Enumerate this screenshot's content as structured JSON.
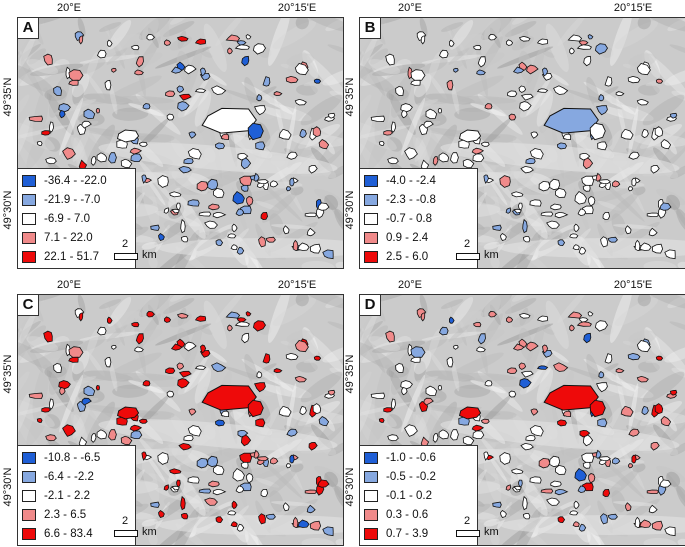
{
  "colors": {
    "strong_neg": "#1f5fd6",
    "neg": "#86a8e0",
    "neutral": "#ffffff",
    "pos": "#f08a8a",
    "strong_pos": "#ee0a0a"
  },
  "axis": {
    "lon_left": "20°E",
    "lon_right": "20°15'E",
    "lat_top": "49°35'N",
    "lat_bottom": "49°30'N"
  },
  "scale": {
    "value": "2",
    "unit": "km"
  },
  "panels": [
    {
      "label": "A",
      "legend": [
        "-36.4 - -22.0",
        "-21.9 - -7.0",
        "-6.9 - 7.0",
        "7.1 - 22.0",
        "22.1 - 51.7"
      ]
    },
    {
      "label": "B",
      "legend": [
        "-4.0 - -2.4",
        "-2.3 - -0.8",
        "-0.7 - 0.8",
        "0.9 - 2.4",
        "2.5 - 6.0"
      ]
    },
    {
      "label": "C",
      "legend": [
        "-10.8 - -6.5",
        "-6.4 - -2.2",
        "-2.1 - 2.2",
        "2.3 - 6.5",
        "6.6 - 83.4"
      ]
    },
    {
      "label": "D",
      "legend": [
        "-1.0 - -0.6",
        "-0.5 - -0.2",
        "-0.1 - 0.2",
        "0.3 - 0.6",
        "0.7 - 3.9"
      ]
    }
  ]
}
